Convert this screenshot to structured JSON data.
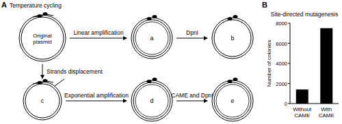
{
  "panel_a": {
    "label": "A",
    "caption": "Temperature cycling",
    "nodes": [
      {
        "label": "Original plasmid"
      },
      {
        "label": "a"
      },
      {
        "label": "b"
      },
      {
        "label": "c"
      },
      {
        "label": "d"
      },
      {
        "label": "e"
      }
    ],
    "edges": [
      {
        "from": 0,
        "to": 1,
        "label": "Linear amplification"
      },
      {
        "from": 1,
        "to": 2,
        "label": "DpnI"
      },
      {
        "from": 0,
        "to": 3,
        "label": "Strands displacement"
      },
      {
        "from": 3,
        "to": 4,
        "label": "Exponential amplification"
      },
      {
        "from": 4,
        "to": 5,
        "label": "CAME and DpnI"
      }
    ]
  },
  "panel_b_label": "B",
  "chart_data": {
    "type": "bar",
    "title": "Site-directed mutagenesis",
    "y_label": "Number of colonies",
    "categories": [
      "Without CAME",
      "With CAME"
    ],
    "values": [
      1400,
      7500
    ],
    "color": "#000000",
    "ylim": [
      0,
      8000
    ],
    "yticks": [
      0,
      2000,
      4000,
      6000,
      8000
    ]
  }
}
